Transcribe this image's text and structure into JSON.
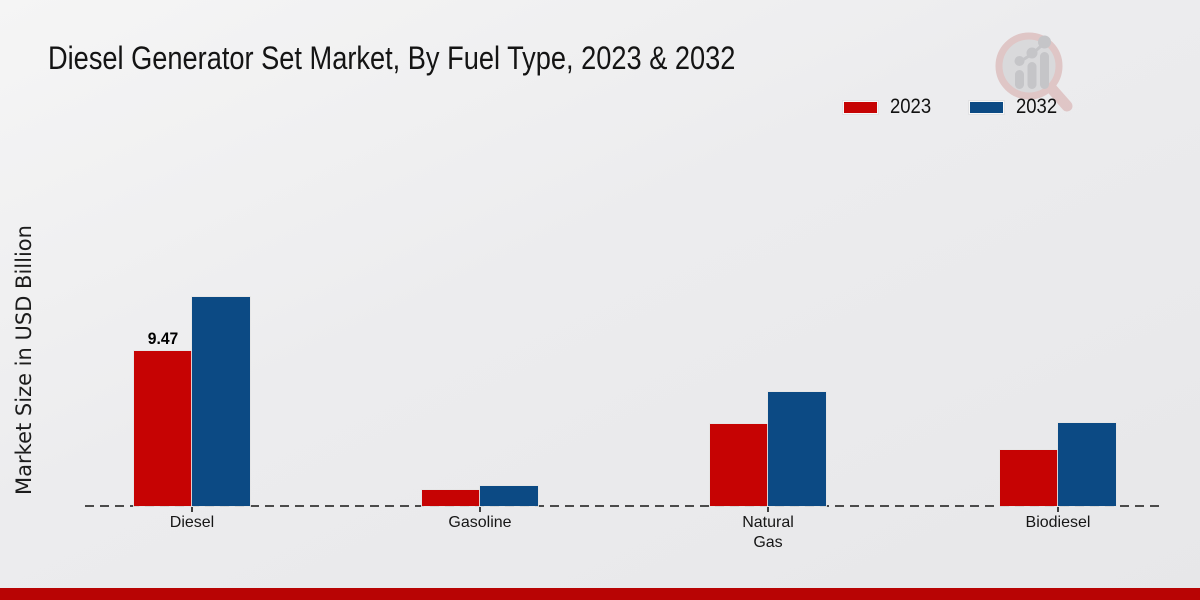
{
  "header": {
    "title": "Diesel Generator Set Market, By Fuel Type, 2023 & 2032"
  },
  "chart_data": {
    "type": "bar",
    "categories": [
      "Diesel",
      "Gasoline",
      "Natural Gas",
      "Biodiesel"
    ],
    "series": [
      {
        "name": "2023",
        "color": "#c60303",
        "values": [
          9.47,
          1.0,
          5.0,
          3.4
        ],
        "labels": [
          "9.47",
          "",
          "",
          ""
        ]
      },
      {
        "name": "2032",
        "color": "#0c4a84",
        "values": [
          12.8,
          1.25,
          7.0,
          5.1
        ],
        "labels": [
          "",
          "",
          "",
          ""
        ]
      }
    ],
    "title": "Diesel Generator Set Market, By Fuel Type, 2023 & 2032",
    "xlabel": "",
    "ylabel": "Market Size in USD Billion",
    "ylim": [
      0,
      13.5
    ],
    "grid": "off",
    "baseline": "dashed zero line",
    "legend_position": "top-right",
    "value_labels_shown": [
      "Diesel 2023: 9.47"
    ]
  },
  "colors": {
    "series_2023": "#c60303",
    "series_2032": "#0c4a84",
    "footer_stripe": "#b80404",
    "background": "#ececee",
    "baseline": "#4b4b4b"
  },
  "logo": {
    "description": "magnifying-glass growth-chart watermark logo"
  }
}
